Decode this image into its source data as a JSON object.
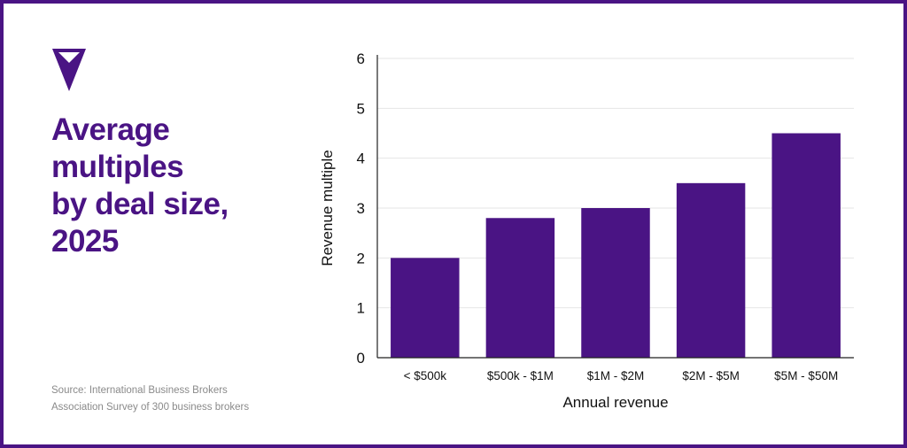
{
  "colors": {
    "accent": "#4A1484",
    "bar": "#4A1484",
    "text": "#111111",
    "source_text": "#8a8a8a",
    "gridline": "#e6e6e6"
  },
  "logo": {
    "icon": "downward-triangle-icon"
  },
  "title_lines": [
    "Average",
    "multiples",
    "by deal size,",
    "2025"
  ],
  "source_lines": [
    "Source: International Business Brokers",
    "Association Survey of 300 business brokers"
  ],
  "chart_data": {
    "type": "bar",
    "categories": [
      "< $500k",
      "$500k - $1M",
      "$1M - $2M",
      "$2M - $5M",
      "$5M - $50M"
    ],
    "values": [
      2.0,
      2.8,
      3.0,
      3.5,
      4.5
    ],
    "title": "",
    "xlabel": "Annual revenue",
    "ylabel": "Revenue multiple",
    "ylim": [
      0,
      6
    ],
    "yticks": [
      0,
      1,
      2,
      3,
      4,
      5,
      6
    ],
    "grid": true,
    "legend": "none"
  }
}
